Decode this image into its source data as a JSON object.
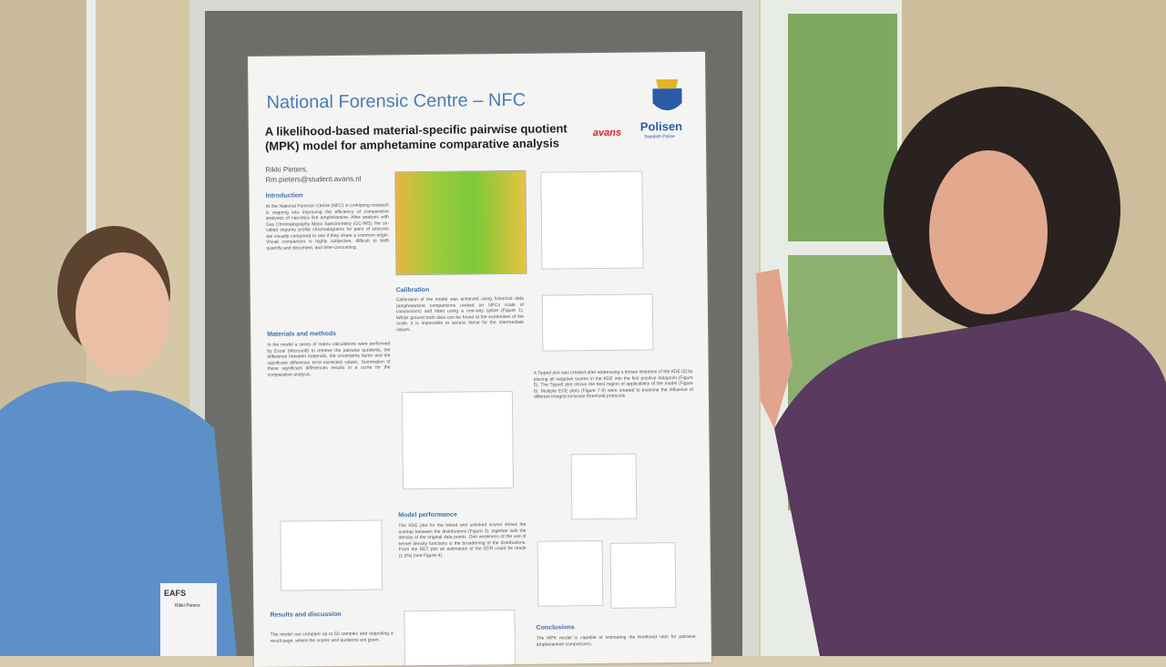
{
  "poster": {
    "title": "National Forensic Centre – NFC",
    "subtitle": [
      "A likelihood-based material-specific pairwise quotient",
      "(MPK) model for amphetamine comparative analysis"
    ],
    "author": "Rikki Pieters,",
    "email": "Rm.pieters@student.avans.nl",
    "logos": {
      "avans": "avans",
      "police": "Polisen",
      "police_sub": "Swedish Police"
    },
    "sections": [
      {
        "heading": "Introduction",
        "text": "At the National Forensic Centre (NFC) in Linköping research is ongoing into improving the efficiency of comparative analyses of narcotics like amphetamine. After analysis with Gas Chromatography Mass Spectrometry (GC-MS), the so-called impurity profile chromatograms for pairs of seizures are visually compared to see if they share a common origin. Visual comparison is highly subjective, difficult to both quantify and document, and time-consuming."
      },
      {
        "heading": "Materials and methods",
        "text": "In the model a series of matrix calculations were performed by Excel (Microsoft) to retrieve the pairwise quotients, the difference between materials, the uncertainty factor and the significant difference error-corrected values. Summation of these significant differences results in a score for the comparative analysis."
      },
      {
        "heading": "Calibration",
        "text": "Calibration of the model was achieved using historical data (amphetamine comparisons ranked on NFCs scale of conclusions) and fitted using a one-way spline (Figure 1). Whilst ground truth data can be found at the extremities of the scale, it is impossible to access these for the intermediate values."
      },
      {
        "heading": "Model performance",
        "text": "The KDE plot for the linked and unlinked scores shows the overlap between the distributions (Figure 3), together with the density of the original data points. One weakness of the use of kernel density functions is the broadening of the distributions. From the DET plot an estimation of the EER could be made (1.2%) (see Figure 4)."
      },
      {
        "heading": "Results and discussion",
        "text": "The model can compare up to 50 samples and outputting a result page, where the scores and quotients are given."
      },
      {
        "heading": "Conclusions",
        "text": "The MPK model is capable of estimating the likelihood ratio for pairwise amphetamine comparisons."
      }
    ],
    "tippett": "A Tippett plot was created after addressing a known limitation of the KDE [2] by placing all negative scores in the KDE into the first positive datapoint (Figure 5). The Tippett plot shows the best region of applicability of the model (Figure 6). Multiple ECE plots (Figure 7-9) were created to examine the influence of different integral inclusion threshold protocols."
  },
  "badge": {
    "org": "EAFS",
    "name": "Rikki Pieters"
  }
}
